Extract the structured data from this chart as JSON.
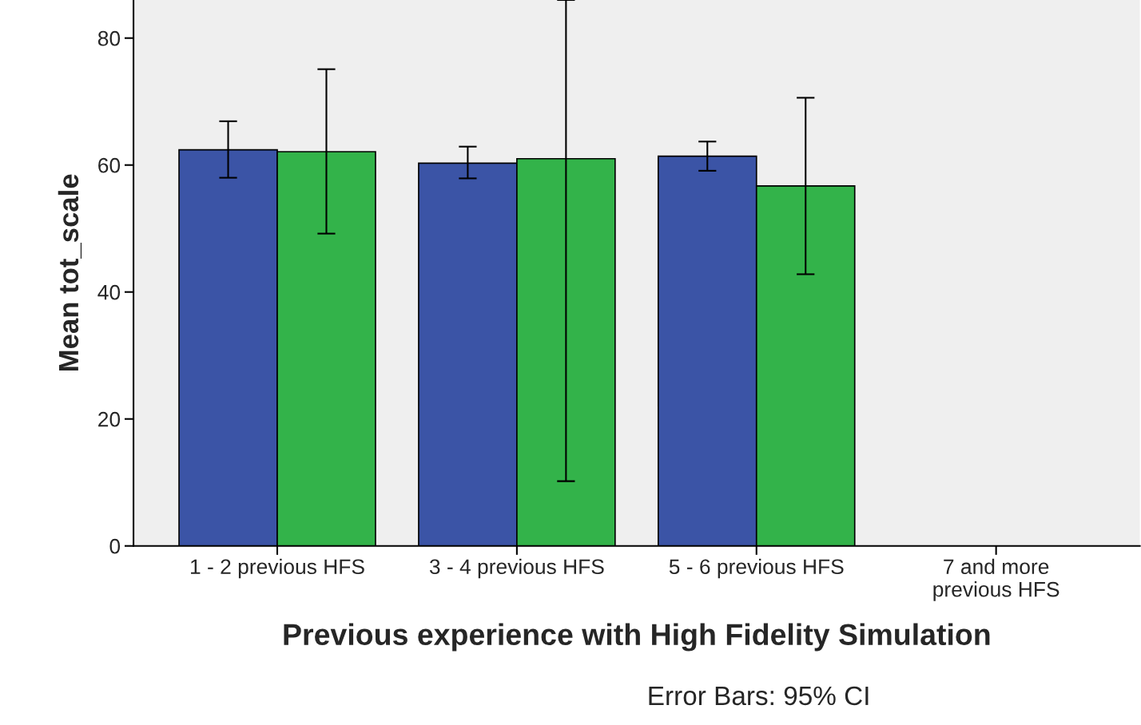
{
  "chart_data": {
    "type": "bar",
    "categories": [
      "1 - 2 previous HFS",
      "3 - 4 previous HFS",
      "5 - 6 previous HFS",
      "7 and more\nprevious HFS"
    ],
    "series": [
      {
        "color": "#3b54a6",
        "values": [
          62.4,
          60.3,
          61.4,
          null
        ],
        "errors": [
          [
            58.0,
            66.9
          ],
          [
            57.9,
            62.9
          ],
          [
            59.1,
            63.7
          ],
          null
        ]
      },
      {
        "color": "#33b34a",
        "values": [
          62.1,
          61.0,
          56.7,
          null
        ],
        "errors": [
          [
            49.2,
            75.1
          ],
          [
            10.2,
            86
          ],
          [
            42.8,
            70.6
          ],
          null
        ]
      }
    ],
    "xlabel": "Previous experience with High Fidelity Simulation",
    "ylabel": "Mean tot_scale",
    "ylim": [
      0,
      86
    ],
    "yticks": [
      0,
      20,
      40,
      60,
      80
    ],
    "grid": false,
    "legend": false,
    "annotations": [
      "Error Bars: 95% CI"
    ]
  }
}
